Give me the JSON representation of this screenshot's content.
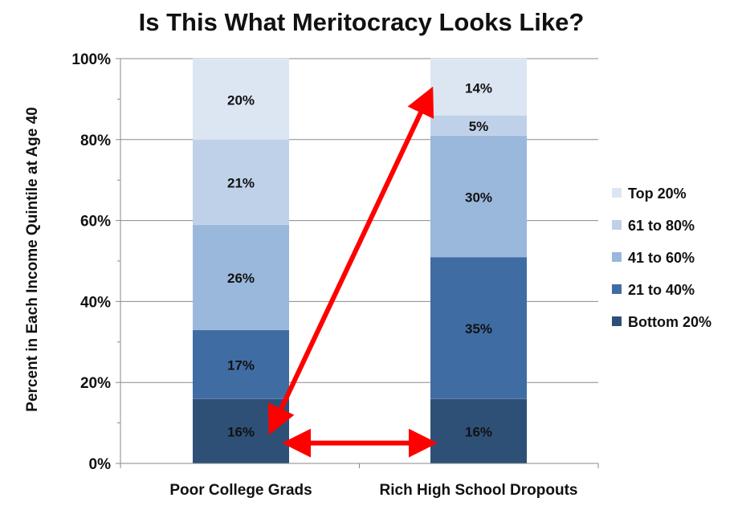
{
  "chart_data": {
    "type": "bar",
    "stacked": true,
    "title": "Is This What Meritocracy Looks Like?",
    "ylabel": "Percent in Each Income Quintile at Age 40",
    "xlabel": "",
    "ylim": [
      0,
      100
    ],
    "yticks": [
      "0%",
      "20%",
      "40%",
      "60%",
      "80%",
      "100%"
    ],
    "categories": [
      "Poor College Grads",
      "Rich High School Dropouts"
    ],
    "series": [
      {
        "name": "Bottom 20%",
        "values": [
          16,
          16
        ],
        "labels": [
          "16%",
          "16%"
        ],
        "color": "#2e5077"
      },
      {
        "name": "21 to 40%",
        "values": [
          17,
          35
        ],
        "labels": [
          "17%",
          "35%"
        ],
        "color": "#3f6da3"
      },
      {
        "name": "41 to 60%",
        "values": [
          26,
          30
        ],
        "labels": [
          "26%",
          "30%"
        ],
        "color": "#9ab8dc"
      },
      {
        "name": "61 to 80%",
        "values": [
          21,
          5
        ],
        "labels": [
          "21%",
          "5%"
        ],
        "color": "#bfd1e8"
      },
      {
        "name": "Top 20%",
        "values": [
          20,
          14
        ],
        "labels": [
          "20%",
          "14%"
        ],
        "color": "#dce6f2"
      }
    ],
    "legend_position": "right",
    "legend_order": [
      "Top 20%",
      "61 to 80%",
      "41 to 60%",
      "21 to 40%",
      "Bottom 20%"
    ],
    "grid": true,
    "annotations": {
      "arrow_color": "#ff0000",
      "arrows": [
        {
          "from": {
            "category": "Poor College Grads",
            "segment": "Bottom 20%"
          },
          "to": {
            "category": "Rich High School Dropouts",
            "segment": "Top 20%"
          }
        },
        {
          "from": {
            "category": "Poor College Grads",
            "segment": "Bottom 20%"
          },
          "to": {
            "category": "Rich High School Dropouts",
            "segment": "Bottom 20%"
          }
        }
      ]
    }
  }
}
